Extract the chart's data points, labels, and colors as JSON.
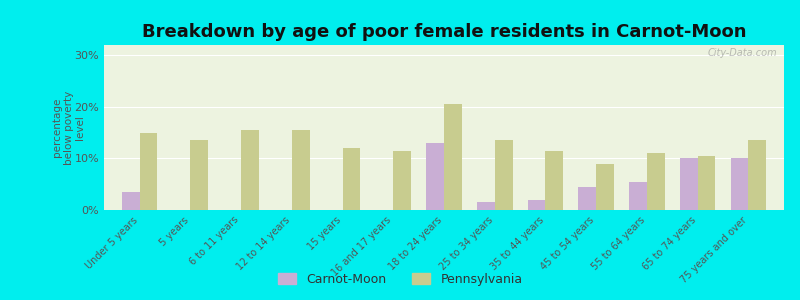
{
  "title": "Breakdown by age of poor female residents in Carnot-Moon",
  "categories": [
    "Under 5 years",
    "5 years",
    "6 to 11 years",
    "12 to 14 years",
    "15 years",
    "16 and 17 years",
    "18 to 24 years",
    "25 to 34 years",
    "35 to 44 years",
    "45 to 54 years",
    "55 to 64 years",
    "65 to 74 years",
    "75 years and over"
  ],
  "carnot_moon": [
    3.5,
    0,
    0,
    0,
    0,
    0,
    13.0,
    1.5,
    2.0,
    4.5,
    5.5,
    10.0,
    10.0
  ],
  "pennsylvania": [
    15.0,
    13.5,
    15.5,
    15.5,
    12.0,
    11.5,
    20.5,
    13.5,
    11.5,
    9.0,
    11.0,
    10.5,
    13.5
  ],
  "carnot_color": "#c9aed4",
  "pennsylvania_color": "#c8cc8f",
  "plot_bg": "#edf3e0",
  "outer_bg": "#00eeee",
  "ylabel": "percentage\nbelow poverty\nlevel",
  "ylim": [
    0,
    32
  ],
  "yticks": [
    0,
    10,
    20,
    30
  ],
  "ytick_labels": [
    "0%",
    "10%",
    "20%",
    "30%"
  ],
  "title_fontsize": 13,
  "watermark": "City-Data.com"
}
